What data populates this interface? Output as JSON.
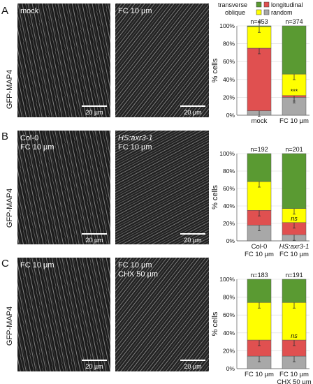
{
  "legend": {
    "items": [
      {
        "label": "transverse",
        "color": "#5a9a32"
      },
      {
        "label": "longitudinal",
        "color": "#e05050"
      },
      {
        "label": "oblique",
        "color": "#ffff00"
      },
      {
        "label": "random",
        "color": "#a8a8a8"
      }
    ]
  },
  "panels": [
    {
      "letter": "A",
      "side_label": "GFP-MAP4",
      "images": [
        {
          "label_lines": [
            "mock"
          ],
          "scale_bar": "20 µm"
        },
        {
          "label_lines": [
            "FC 10 µm"
          ],
          "scale_bar": "20 µm"
        }
      ]
    },
    {
      "letter": "B",
      "side_label": "GFP-MAP4",
      "images": [
        {
          "label_lines": [
            "Col-0",
            "FC 10 µm"
          ],
          "scale_bar": "20 µm"
        },
        {
          "label_lines": [
            "HS:axr3-1",
            "FC 10 µm"
          ],
          "scale_bar": "20 µm"
        }
      ]
    },
    {
      "letter": "C",
      "side_label": "GFP-MAP4",
      "images": [
        {
          "label_lines": [
            "FC 10 µm"
          ],
          "scale_bar": "20 µm"
        },
        {
          "label_lines": [
            "FC 10 µm",
            "CHX 50 µm"
          ],
          "scale_bar": "20 µm"
        }
      ]
    }
  ],
  "chart_data": [
    {
      "type": "bar",
      "stacked": true,
      "ylabel": "% cells",
      "ylim": [
        0,
        100
      ],
      "yticks": [
        "0%",
        "20%",
        "40%",
        "60%",
        "80%",
        "100%"
      ],
      "categories": [
        [
          "mock"
        ],
        [
          "FC 10 µm"
        ]
      ],
      "n_labels": [
        "n=453",
        "n=374"
      ],
      "series": [
        {
          "name": "random",
          "values": [
            5,
            20
          ]
        },
        {
          "name": "longitudinal",
          "values": [
            70,
            2
          ]
        },
        {
          "name": "oblique",
          "values": [
            24,
            24
          ]
        },
        {
          "name": "transverse",
          "values": [
            1,
            54
          ]
        }
      ],
      "annotations": [
        {
          "bar": 1,
          "text": "***"
        }
      ]
    },
    {
      "type": "bar",
      "stacked": true,
      "ylabel": "% cells",
      "ylim": [
        0,
        100
      ],
      "yticks": [
        "0%",
        "20%",
        "40%",
        "60%",
        "80%",
        "100%"
      ],
      "categories": [
        [
          "Col-0",
          "FC 10 µm"
        ],
        [
          "HS:axr3-1",
          "FC 10 µm"
        ]
      ],
      "n_labels": [
        "n=192",
        "n=201"
      ],
      "series": [
        {
          "name": "random",
          "values": [
            18,
            7
          ]
        },
        {
          "name": "longitudinal",
          "values": [
            17,
            14
          ]
        },
        {
          "name": "oblique",
          "values": [
            33,
            16
          ]
        },
        {
          "name": "transverse",
          "values": [
            32,
            63
          ]
        }
      ],
      "annotations": [
        {
          "bar": 1,
          "text": "ns"
        }
      ]
    },
    {
      "type": "bar",
      "stacked": true,
      "ylabel": "% cells",
      "ylim": [
        0,
        100
      ],
      "yticks": [
        "0%",
        "20%",
        "40%",
        "60%",
        "80%",
        "100%"
      ],
      "categories": [
        [
          "FC 10 µm"
        ],
        [
          "FC 10 µm",
          "CHX 50 µm"
        ]
      ],
      "n_labels": [
        "n=183",
        "n=191"
      ],
      "series": [
        {
          "name": "random",
          "values": [
            14,
            14
          ]
        },
        {
          "name": "longitudinal",
          "values": [
            18,
            18
          ]
        },
        {
          "name": "oblique",
          "values": [
            42,
            42
          ]
        },
        {
          "name": "transverse",
          "values": [
            26,
            26
          ]
        }
      ],
      "annotations": [
        {
          "bar": 1,
          "text": "ns"
        }
      ]
    }
  ]
}
